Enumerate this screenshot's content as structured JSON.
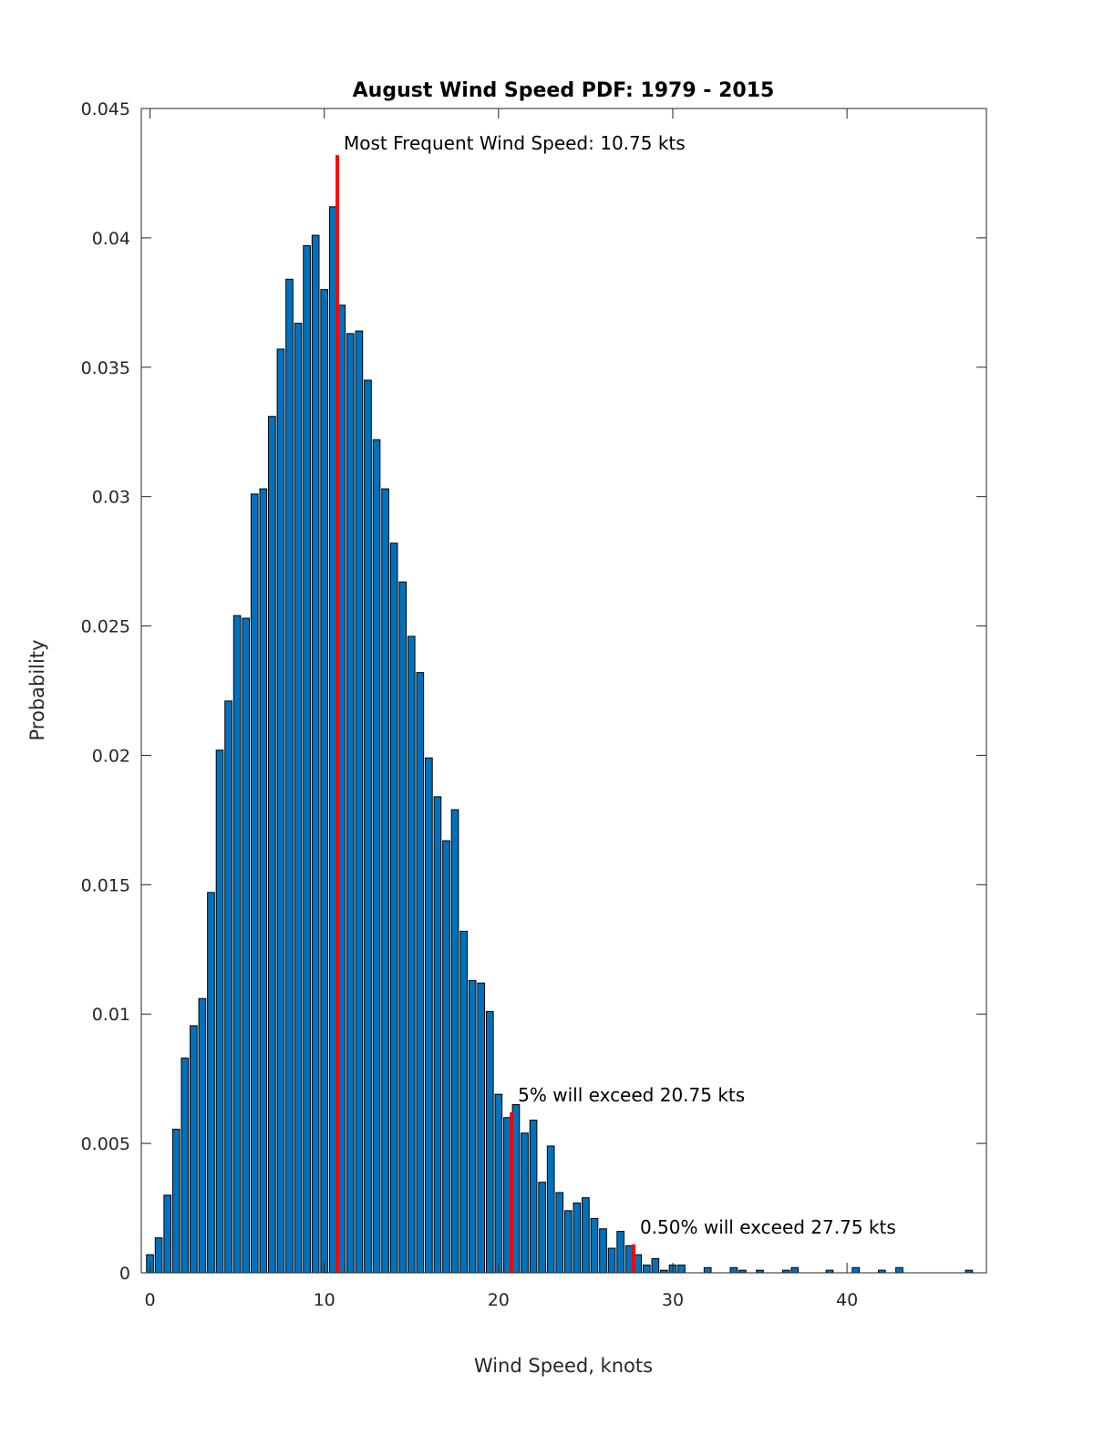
{
  "chart_data": {
    "type": "bar",
    "title": "August Wind Speed PDF: 1979 - 2015",
    "xlabel": "Wind Speed, knots",
    "ylabel": "Probability",
    "xlim": [
      -0.5,
      48.0
    ],
    "ylim": [
      0,
      0.045
    ],
    "xticks": [
      0,
      10,
      20,
      30,
      40
    ],
    "yticks": [
      0,
      0.005,
      0.01,
      0.015,
      0.02,
      0.025,
      0.03,
      0.035,
      0.04,
      0.045
    ],
    "ytick_labels": [
      "0",
      "0.005",
      "0.01",
      "0.015",
      "0.02",
      "0.025",
      "0.03",
      "0.035",
      "0.04",
      "0.045"
    ],
    "bar_width": 0.4,
    "grid": false,
    "x": [
      0,
      0.5,
      1,
      1.5,
      2,
      2.5,
      3,
      3.5,
      4,
      4.5,
      5,
      5.5,
      6,
      6.5,
      7,
      7.5,
      8,
      8.5,
      9,
      9.5,
      10,
      10.5,
      11,
      11.5,
      12,
      12.5,
      13,
      13.5,
      14,
      14.5,
      15,
      15.5,
      16,
      16.5,
      17,
      17.5,
      18,
      18.5,
      19,
      19.5,
      20,
      20.5,
      21,
      21.5,
      22,
      22.5,
      23,
      23.5,
      24,
      24.5,
      25,
      25.5,
      26,
      26.5,
      27,
      27.5,
      28,
      28.5,
      29,
      29.5,
      30,
      30.5,
      32,
      33.5,
      34,
      35,
      36.5,
      37,
      39,
      40.5,
      42,
      43,
      47
    ],
    "values": [
      0.0007,
      0.00135,
      0.003,
      0.00555,
      0.0083,
      0.00955,
      0.0106,
      0.0147,
      0.0202,
      0.0221,
      0.0254,
      0.0253,
      0.0301,
      0.0303,
      0.0331,
      0.0357,
      0.0384,
      0.0367,
      0.0397,
      0.0401,
      0.038,
      0.0412,
      0.0374,
      0.0363,
      0.0364,
      0.0345,
      0.0322,
      0.0303,
      0.0282,
      0.0267,
      0.0246,
      0.0232,
      0.0199,
      0.0184,
      0.0167,
      0.0179,
      0.0132,
      0.0113,
      0.0112,
      0.0101,
      0.0069,
      0.006,
      0.0065,
      0.0054,
      0.0059,
      0.0035,
      0.0049,
      0.0031,
      0.0024,
      0.0027,
      0.0029,
      0.0021,
      0.0017,
      0.00095,
      0.0016,
      0.00105,
      0.0007,
      0.0003,
      0.00055,
      0.0001,
      0.0003,
      0.0003,
      0.0002,
      0.0002,
      0.0001,
      0.0001,
      0.0001,
      0.0002,
      0.0001,
      0.0002,
      0.0001,
      0.0002,
      0.0001
    ],
    "markers": [
      {
        "x": 10.75,
        "y": 0.0432,
        "label": "Most Frequent Wind Speed: 10.75 kts",
        "color": "#ff0000"
      },
      {
        "x": 20.75,
        "y": 0.0062,
        "label": "5% will exceed 20.75 kts",
        "color": "#ff0000"
      },
      {
        "x": 27.75,
        "y": 0.0011,
        "label": "0.50% will exceed 27.75 kts",
        "color": "#ff0000"
      }
    ],
    "bar_color": "#0072bd"
  }
}
